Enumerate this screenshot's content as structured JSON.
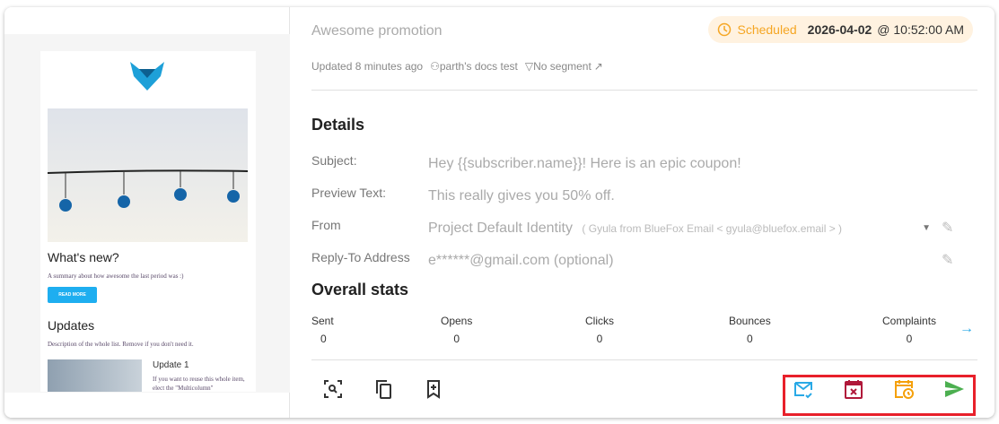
{
  "email_preview": {
    "heading1": "What's new?",
    "summary": "A summary about how awesome the last period was :)",
    "button": "READ MORE",
    "heading2": "Updates",
    "description": "Description of the whole list. Remove if you don't need it.",
    "update_title": "Update 1",
    "update_text": "If you want to reuse this whole item, elect the \"Multicolumn\""
  },
  "campaign": {
    "title": "Awesome promotion",
    "status": "Scheduled",
    "date": "2026-04-02",
    "time": "@ 10:52:00 AM",
    "updated": "Updated 8 minutes ago",
    "project": "parth's docs test",
    "segment": "No segment"
  },
  "details": {
    "heading": "Details",
    "fields": [
      {
        "label": "Subject:",
        "value": "Hey {{subscriber.name}}! Here is an epic coupon!"
      },
      {
        "label": "Preview Text:",
        "value": "This really gives you 50% off."
      },
      {
        "label": "From",
        "value": "Project Default Identity",
        "extra": "( Gyula from BlueFox Email < gyula@bluefox.email > )"
      },
      {
        "label": "Reply-To Address",
        "value": "e******@gmail.com (optional)"
      }
    ]
  },
  "stats": {
    "heading": "Overall stats",
    "items": [
      {
        "label": "Sent",
        "value": "0"
      },
      {
        "label": "Opens",
        "value": "0"
      },
      {
        "label": "Clicks",
        "value": "0"
      },
      {
        "label": "Bounces",
        "value": "0"
      },
      {
        "label": "Complaints",
        "value": "0"
      }
    ]
  },
  "colors": {
    "scheduled": "#f5a623",
    "test": "#29a9e6",
    "cancel": "#b0183a",
    "reschedule": "#f5a00a",
    "send": "#4caf50",
    "highlight": "#e8202a"
  }
}
